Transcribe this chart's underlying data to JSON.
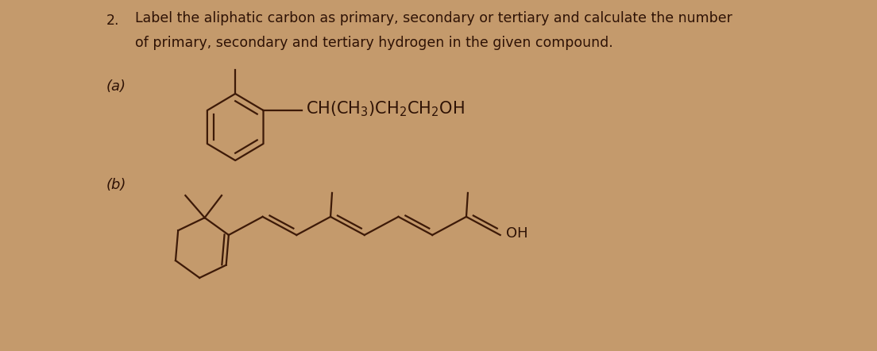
{
  "background_color": "#c49a6c",
  "text_color": "#2e1205",
  "line_color": "#3d1a08",
  "title_number": "2.",
  "title_line1": "Label the aliphatic carbon as primary, secondary or tertiary and calculate the number",
  "title_line2": "of primary, secondary and tertiary hydrogen in the given compound.",
  "label_a": "(a)",
  "label_b": "(b)",
  "oh_label": "OH",
  "font_size_title": 12.5,
  "font_size_label": 13,
  "font_size_formula": 15
}
